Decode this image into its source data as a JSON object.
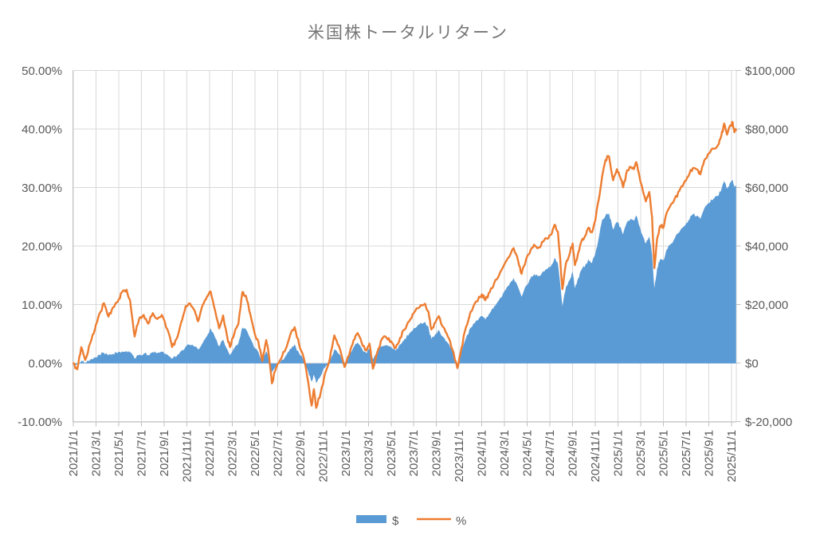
{
  "title": "米国株トータルリターン",
  "colors": {
    "background": "#FFFFFF",
    "area_blue": "#5B9BD5",
    "line_orange": "#ED7D31",
    "gridline": "#D9D9D9",
    "axis_line": "#BFBFBF",
    "label_gray": "#595959",
    "title_gray": "#767676",
    "negative_label_red": "#FF0000"
  },
  "legend": {
    "items": [
      {
        "label": "$",
        "swatch": "blue-filled-rectangle"
      },
      {
        "label": "%",
        "swatch": "orange-line"
      }
    ]
  },
  "chart_data": {
    "type": "area+line",
    "title": "米国株トータルリターン",
    "grid": true,
    "legend_position": "bottom",
    "series": [
      {
        "name": "$",
        "type": "area",
        "axis": "right",
        "color": "#5B9BD5"
      },
      {
        "name": "%",
        "type": "line",
        "axis": "left",
        "color": "#ED7D31"
      }
    ],
    "left_axis": {
      "unit": "percent",
      "min": -10,
      "max": 50,
      "step": 10,
      "ticks": [
        "50.00%",
        "40.00%",
        "30.00%",
        "20.00%",
        "10.00%",
        "0.00%",
        "-10.00%"
      ]
    },
    "right_axis": {
      "unit": "USD",
      "min": -20000,
      "max": 100000,
      "step": 20000,
      "ticks": [
        "$100,000",
        "$80,000",
        "$60,000",
        "$40,000",
        "$20,000",
        "$0",
        "$-20,000"
      ],
      "negative_tick_color": "#FF0000"
    },
    "x_axis": {
      "unit": "date",
      "range_months": 58,
      "ticks": [
        "2021/1/1",
        "2021/3/1",
        "2021/5/1",
        "2021/7/1",
        "2021/9/1",
        "2021/11/1",
        "2022/1/1",
        "2022/3/1",
        "2022/5/1",
        "2022/7/1",
        "2022/9/1",
        "2022/11/1",
        "2023/1/1",
        "2023/3/1",
        "2023/5/1",
        "2023/7/1",
        "2023/9/1",
        "2023/11/1",
        "2024/1/1",
        "2024/3/1",
        "2024/5/1",
        "2024/7/1",
        "2024/9/1",
        "2024/11/1",
        "2025/1/1",
        "2025/3/1",
        "2025/5/1",
        "2025/7/1",
        "2025/9/1",
        "2025/11/1"
      ]
    },
    "points_format": [
      "months_since_2021_01_01",
      "percent_return",
      "usd_gain"
    ],
    "points": [
      [
        0,
        0,
        0
      ],
      [
        0.35,
        -1,
        -300
      ],
      [
        0.7,
        2.8,
        900
      ],
      [
        1.05,
        0.6,
        200
      ],
      [
        1.5,
        3.5,
        1300
      ],
      [
        1.9,
        5.8,
        2100
      ],
      [
        2.3,
        8.5,
        3000
      ],
      [
        2.7,
        10.3,
        3600
      ],
      [
        3.1,
        8,
        2900
      ],
      [
        3.5,
        9.6,
        3300
      ],
      [
        3.9,
        10.5,
        3600
      ],
      [
        4.3,
        12.2,
        4100
      ],
      [
        4.7,
        12.6,
        4300
      ],
      [
        5,
        10.8,
        3800
      ],
      [
        5.4,
        4.6,
        1700
      ],
      [
        5.8,
        7.6,
        2900
      ],
      [
        6.2,
        8.3,
        3300
      ],
      [
        6.6,
        6.8,
        2900
      ],
      [
        7,
        8.6,
        3900
      ],
      [
        7.4,
        7.6,
        3600
      ],
      [
        7.8,
        8.3,
        4100
      ],
      [
        8.3,
        5.8,
        3000
      ],
      [
        8.7,
        2.8,
        1600
      ],
      [
        9.1,
        4.2,
        2400
      ],
      [
        9.5,
        7,
        4200
      ],
      [
        9.9,
        9.8,
        5800
      ],
      [
        10.3,
        10.2,
        6300
      ],
      [
        10.7,
        9,
        5800
      ],
      [
        11,
        7.2,
        4800
      ],
      [
        11.4,
        10,
        7000
      ],
      [
        11.8,
        11.5,
        9500
      ],
      [
        12.1,
        12.3,
        12000
      ],
      [
        12.5,
        9,
        8800
      ],
      [
        12.85,
        6,
        5900
      ],
      [
        13.2,
        8.2,
        8100
      ],
      [
        13.5,
        5.2,
        5200
      ],
      [
        13.8,
        2.8,
        2900
      ],
      [
        14.2,
        5.2,
        5300
      ],
      [
        14.55,
        6.8,
        7000
      ],
      [
        14.9,
        12.2,
        12300
      ],
      [
        15.2,
        11.6,
        11700
      ],
      [
        15.6,
        8.4,
        8600
      ],
      [
        16,
        5,
        5200
      ],
      [
        16.3,
        3.8,
        4000
      ],
      [
        16.65,
        0.4,
        500
      ],
      [
        17,
        4,
        4200
      ],
      [
        17.25,
        1.2,
        1300
      ],
      [
        17.5,
        -3.4,
        -3100
      ],
      [
        17.9,
        -0.6,
        -500
      ],
      [
        18.3,
        0.8,
        900
      ],
      [
        18.7,
        2.4,
        2500
      ],
      [
        19.1,
        4.8,
        5000
      ],
      [
        19.5,
        6.2,
        6500
      ],
      [
        19.9,
        3.2,
        3400
      ],
      [
        20.3,
        1,
        1100
      ],
      [
        20.7,
        -3.2,
        -2900
      ],
      [
        21,
        -7.2,
        -6300
      ],
      [
        21.2,
        -4.4,
        -3800
      ],
      [
        21.4,
        -7.6,
        -6700
      ],
      [
        21.8,
        -5,
        -4300
      ],
      [
        22.2,
        -1.6,
        -1300
      ],
      [
        22.6,
        0.8,
        800
      ],
      [
        23,
        4.8,
        4800
      ],
      [
        23.4,
        3,
        3300
      ],
      [
        23.9,
        -0.6,
        200
      ],
      [
        24.3,
        1.4,
        2400
      ],
      [
        24.7,
        4,
        5600
      ],
      [
        25.05,
        5.2,
        7200
      ],
      [
        25.4,
        3.6,
        5300
      ],
      [
        25.8,
        2.2,
        3600
      ],
      [
        26.1,
        3.4,
        5000
      ],
      [
        26.4,
        -0.9,
        1400
      ],
      [
        26.8,
        2,
        3800
      ],
      [
        27.2,
        4.2,
        6000
      ],
      [
        27.6,
        4.4,
        6300
      ],
      [
        28,
        3.8,
        5600
      ],
      [
        28.4,
        2.6,
        4400
      ],
      [
        28.8,
        4.4,
        6500
      ],
      [
        29.2,
        5.8,
        8400
      ],
      [
        29.6,
        7.2,
        10200
      ],
      [
        30,
        8.6,
        12100
      ],
      [
        30.5,
        9.6,
        13400
      ],
      [
        31,
        10.2,
        14200
      ],
      [
        31.3,
        8.8,
        12300
      ],
      [
        31.55,
        5.8,
        8400
      ],
      [
        31.9,
        7,
        10000
      ],
      [
        32.2,
        8.1,
        11500
      ],
      [
        32.6,
        6.2,
        9000
      ],
      [
        33,
        4.6,
        7000
      ],
      [
        33.4,
        2.4,
        4200
      ],
      [
        33.84,
        -0.8,
        -400
      ],
      [
        34.2,
        2.6,
        4000
      ],
      [
        34.6,
        6.2,
        8700
      ],
      [
        35,
        8.8,
        12200
      ],
      [
        35.5,
        10.6,
        14700
      ],
      [
        36,
        11.8,
        16200
      ],
      [
        36.3,
        10.8,
        15000
      ],
      [
        36.7,
        12.2,
        17200
      ],
      [
        37.1,
        13.8,
        19600
      ],
      [
        37.5,
        15,
        21600
      ],
      [
        38,
        17,
        24800
      ],
      [
        38.4,
        18.2,
        26800
      ],
      [
        38.8,
        19.7,
        29200
      ],
      [
        39.2,
        17.5,
        26000
      ],
      [
        39.5,
        15.3,
        22800
      ],
      [
        39.9,
        17.8,
        26600
      ],
      [
        40.3,
        19.4,
        29200
      ],
      [
        40.6,
        20.3,
        30600
      ],
      [
        41,
        19.8,
        29900
      ],
      [
        41.4,
        20.8,
        31500
      ],
      [
        41.8,
        21.3,
        32300
      ],
      [
        42.1,
        22,
        33400
      ],
      [
        42.4,
        23.7,
        36000
      ],
      [
        42.7,
        22.5,
        34200
      ],
      [
        43.1,
        12.7,
        19500
      ],
      [
        43.4,
        17,
        26000
      ],
      [
        43.7,
        18.5,
        28300
      ],
      [
        44,
        20.5,
        31400
      ],
      [
        44.2,
        16.8,
        25700
      ],
      [
        44.5,
        19,
        29100
      ],
      [
        44.8,
        21,
        32200
      ],
      [
        45.1,
        21.8,
        33400
      ],
      [
        45.4,
        23.2,
        35600
      ],
      [
        45.7,
        22.4,
        34400
      ],
      [
        46,
        24.5,
        37600
      ],
      [
        46.3,
        28,
        43000
      ],
      [
        46.6,
        32,
        49100
      ],
      [
        46.9,
        34.8,
        50600
      ],
      [
        47.2,
        35.4,
        51400
      ],
      [
        47.57,
        31.3,
        45800
      ],
      [
        47.9,
        33.2,
        48400
      ],
      [
        48.2,
        31.8,
        46600
      ],
      [
        48.45,
        30.1,
        44200
      ],
      [
        48.8,
        33,
        48400
      ],
      [
        49.1,
        33.6,
        49400
      ],
      [
        49.4,
        33.2,
        48800
      ],
      [
        49.6,
        34.4,
        50600
      ],
      [
        49.9,
        31.8,
        46800
      ],
      [
        50.2,
        29.4,
        43400
      ],
      [
        50.45,
        27.7,
        41000
      ],
      [
        50.75,
        29.3,
        43400
      ],
      [
        51,
        25,
        37200
      ],
      [
        51.2,
        16.3,
        25800
      ],
      [
        51.45,
        21.4,
        32600
      ],
      [
        51.7,
        23.5,
        35600
      ],
      [
        52,
        23.2,
        35200
      ],
      [
        52.3,
        25.8,
        39000
      ],
      [
        52.6,
        26.9,
        40700
      ],
      [
        53,
        28.2,
        42800
      ],
      [
        53.4,
        29.5,
        44900
      ],
      [
        53.8,
        30.8,
        46900
      ],
      [
        54.2,
        32,
        48800
      ],
      [
        54.6,
        33.4,
        51000
      ],
      [
        55,
        33.1,
        50600
      ],
      [
        55.25,
        32.3,
        49400
      ],
      [
        55.6,
        34.7,
        53000
      ],
      [
        56,
        35.9,
        54900
      ],
      [
        56.4,
        36.7,
        56200
      ],
      [
        56.8,
        37.3,
        57200
      ],
      [
        57.1,
        38.9,
        59500
      ],
      [
        57.35,
        41,
        62400
      ],
      [
        57.6,
        39.1,
        59700
      ],
      [
        57.9,
        40.7,
        62000
      ],
      [
        58.1,
        41.2,
        62800
      ],
      [
        58.25,
        39.5,
        60300
      ],
      [
        58.4,
        39.9,
        60800
      ]
    ]
  }
}
